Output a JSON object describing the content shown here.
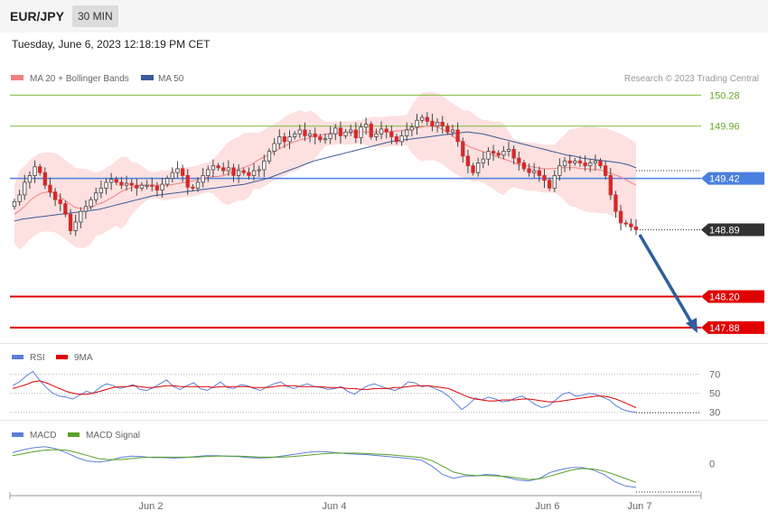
{
  "header": {
    "symbol": "EUR/JPY",
    "interval": "30 MIN",
    "datetime": "Tuesday, June 6, 2023 12:18:19 PM CET"
  },
  "legend": {
    "ma20_label": "MA 20 + Bollinger Bands",
    "ma50_label": "MA 50",
    "credit": "Research © 2023 Trading Central",
    "rsi_label": "RSI",
    "rsi_ma_label": "9MA",
    "macd_label": "MACD",
    "macd_signal_label": "MACD Signal"
  },
  "colors": {
    "ma20": "#f08080",
    "ma50": "#3a5a9a",
    "bollinger_fill": "#fde0e0",
    "candle": "#d42a2a",
    "support": "#e00000",
    "resistance": "#7dbb3a",
    "current_level": "#4a7fe0",
    "last_price_bg": "#333333",
    "arrow": "#2e5e9e",
    "rsi": "#5b7fd8",
    "rsi_ma": "#e00000",
    "macd": "#5b7fd8",
    "macd_signal": "#5aa02a"
  },
  "chart_data": [
    {
      "type": "candlestick",
      "title": "EUR/JPY",
      "ylim": [
        147.72,
        150.33
      ],
      "x_ticks": [
        "Jun 2",
        "Jun 4",
        "Jun 6",
        "Jun 7"
      ],
      "price_levels": [
        {
          "label": "150.28",
          "value": 150.28,
          "kind": "resistance"
        },
        {
          "label": "149.96",
          "value": 149.96,
          "kind": "resistance"
        },
        {
          "label": "149.42",
          "value": 149.42,
          "kind": "pivot"
        },
        {
          "label": "148.89",
          "value": 148.89,
          "kind": "last"
        },
        {
          "label": "148.20",
          "value": 148.2,
          "kind": "support"
        },
        {
          "label": "147.88",
          "value": 147.88,
          "kind": "support"
        }
      ],
      "close_prices": [
        149.18,
        149.25,
        149.38,
        149.45,
        149.54,
        149.48,
        149.35,
        149.28,
        149.2,
        149.16,
        149.05,
        148.88,
        148.97,
        149.08,
        149.13,
        149.2,
        149.27,
        149.32,
        149.38,
        149.41,
        149.38,
        149.35,
        149.37,
        149.35,
        149.32,
        149.35,
        149.35,
        149.34,
        149.3,
        149.36,
        149.42,
        149.48,
        149.52,
        149.45,
        149.33,
        149.32,
        149.38,
        149.45,
        149.51,
        149.55,
        149.53,
        149.5,
        149.53,
        149.45,
        149.5,
        149.48,
        149.45,
        149.5,
        149.51,
        149.6,
        149.7,
        149.78,
        149.85,
        149.8,
        149.85,
        149.88,
        149.92,
        149.86,
        149.88,
        149.85,
        149.82,
        149.83,
        149.88,
        149.94,
        149.86,
        149.9,
        149.92,
        149.84,
        149.95,
        149.98,
        149.85,
        149.88,
        149.93,
        149.9,
        149.85,
        149.8,
        149.86,
        149.92,
        149.95,
        150.02,
        150.05,
        150.01,
        149.96,
        150.0,
        149.96,
        149.9,
        149.92,
        149.8,
        149.65,
        149.55,
        149.48,
        149.58,
        149.62,
        149.7,
        149.68,
        149.66,
        149.7,
        149.72,
        149.63,
        149.58,
        149.52,
        149.48,
        149.5,
        149.45,
        149.4,
        149.32,
        149.45,
        149.55,
        149.6,
        149.58,
        149.6,
        149.58,
        149.55,
        149.58,
        149.6,
        149.55,
        149.45,
        149.25,
        149.08,
        148.96,
        148.95,
        148.92,
        148.89
      ],
      "ma20": [
        149.05,
        149.09,
        149.14,
        149.2,
        149.24,
        149.27,
        149.28,
        149.27,
        149.24,
        149.2,
        149.16,
        149.12,
        149.11,
        149.11,
        149.12,
        149.15,
        149.17,
        149.2,
        149.23,
        149.27,
        149.3,
        149.32,
        149.34,
        149.35,
        149.35,
        149.35,
        149.35,
        149.35,
        149.35,
        149.36,
        149.37,
        149.38,
        149.39,
        149.4,
        149.42,
        149.43,
        149.44,
        149.44,
        149.45,
        149.47,
        149.5,
        149.52,
        149.54,
        149.56,
        149.6,
        149.63,
        149.66,
        149.69,
        149.72,
        149.75,
        149.78,
        149.8,
        149.82,
        149.83,
        149.85,
        149.86,
        149.87,
        149.88,
        149.89,
        149.89,
        149.89,
        149.89,
        149.9,
        149.9,
        149.9,
        149.9,
        149.9,
        149.9,
        149.9,
        149.91,
        149.91,
        149.92,
        149.93,
        149.94,
        149.95,
        149.96,
        149.96,
        149.95,
        149.92,
        149.88,
        149.84,
        149.81,
        149.77,
        149.74,
        149.72,
        149.7,
        149.68,
        149.66,
        149.64,
        149.62,
        149.6,
        149.58,
        149.56,
        149.55,
        149.54,
        149.53,
        149.52,
        149.52,
        149.52,
        149.53,
        149.53,
        149.53,
        149.53,
        149.52,
        149.52,
        149.51,
        149.51,
        149.5,
        149.48,
        149.46,
        149.44,
        149.41,
        149.38,
        149.35
      ],
      "ma50": [
        148.98,
        149.0,
        149.01,
        149.02,
        149.03,
        149.04,
        149.05,
        149.06,
        149.07,
        149.08,
        149.09,
        149.1,
        149.12,
        149.14,
        149.16,
        149.18,
        149.2,
        149.22,
        149.24,
        149.25,
        149.26,
        149.27,
        149.28,
        149.29,
        149.3,
        149.31,
        149.32,
        149.33,
        149.34,
        149.35,
        149.36,
        149.38,
        149.4,
        149.42,
        149.45,
        149.48,
        149.51,
        149.54,
        149.57,
        149.6,
        149.62,
        149.64,
        149.66,
        149.68,
        149.7,
        149.72,
        149.74,
        149.76,
        149.78,
        149.8,
        149.81,
        149.82,
        149.83,
        149.84,
        149.85,
        149.86,
        149.87,
        149.88,
        149.89,
        149.9,
        149.89,
        149.88,
        149.86,
        149.84,
        149.82,
        149.8,
        149.78,
        149.76,
        149.74,
        149.72,
        149.7,
        149.68,
        149.66,
        149.65,
        149.63,
        149.62,
        149.61,
        149.6,
        149.59,
        149.58,
        149.56,
        149.53
      ]
    },
    {
      "type": "line",
      "title": "RSI",
      "ylim": [
        25,
        80
      ],
      "y_ticks": [
        70,
        50,
        30
      ],
      "series": [
        {
          "name": "RSI",
          "values": [
            58,
            62,
            68,
            73,
            64,
            56,
            50,
            47,
            46,
            44,
            48,
            52,
            50,
            56,
            60,
            58,
            55,
            57,
            59,
            54,
            53,
            56,
            60,
            64,
            57,
            54,
            58,
            61,
            55,
            53,
            57,
            62,
            56,
            55,
            59,
            58,
            55,
            53,
            57,
            60,
            62,
            57,
            55,
            58,
            60,
            57,
            56,
            54,
            55,
            57,
            52,
            49,
            54,
            58,
            60,
            57,
            55,
            53,
            56,
            62,
            61,
            57,
            58,
            55,
            52,
            47,
            40,
            33,
            38,
            45,
            43,
            46,
            44,
            41,
            42,
            45,
            47,
            43,
            38,
            35,
            37,
            43,
            49,
            51,
            47,
            48,
            50,
            49,
            46,
            43,
            37,
            33,
            31,
            30
          ]
        },
        {
          "name": "9MA",
          "values": [
            55,
            57,
            59,
            62,
            63,
            61,
            58,
            55,
            52,
            50,
            49,
            49,
            50,
            52,
            54,
            56,
            57,
            57,
            58,
            57,
            56,
            56,
            57,
            58,
            58,
            57,
            57,
            57,
            57,
            57,
            56,
            57,
            57,
            57,
            57,
            57,
            56,
            56,
            56,
            57,
            58,
            58,
            58,
            57,
            57,
            57,
            57,
            56,
            56,
            56,
            55,
            55,
            54,
            54,
            55,
            55,
            55,
            56,
            56,
            57,
            58,
            58,
            58,
            57,
            56,
            55,
            52,
            49,
            46,
            44,
            43,
            42,
            42,
            43,
            43,
            43,
            44,
            44,
            43,
            42,
            41,
            41,
            42,
            43,
            44,
            45,
            46,
            47,
            47,
            46,
            44,
            41,
            38,
            35
          ]
        }
      ]
    },
    {
      "type": "line",
      "title": "MACD",
      "ylim": [
        -0.7,
        0.5
      ],
      "y_ticks": [
        0
      ],
      "series": [
        {
          "name": "MACD",
          "values": [
            0.22,
            0.28,
            0.32,
            0.34,
            0.3,
            0.22,
            0.12,
            0.05,
            0.03,
            0.06,
            0.12,
            0.15,
            0.14,
            0.12,
            0.12,
            0.11,
            0.12,
            0.14,
            0.16,
            0.16,
            0.15,
            0.14,
            0.12,
            0.11,
            0.12,
            0.15,
            0.18,
            0.21,
            0.24,
            0.24,
            0.22,
            0.2,
            0.19,
            0.18,
            0.16,
            0.14,
            0.12,
            0.1,
            0.07,
            -0.05,
            -0.22,
            -0.3,
            -0.25,
            -0.25,
            -0.22,
            -0.23,
            -0.28,
            -0.33,
            -0.35,
            -0.3,
            -0.18,
            -0.12,
            -0.08,
            -0.08,
            -0.13,
            -0.22,
            -0.36,
            -0.45,
            -0.48
          ]
        },
        {
          "name": "MACD Signal",
          "values": [
            0.16,
            0.2,
            0.24,
            0.27,
            0.28,
            0.27,
            0.22,
            0.16,
            0.1,
            0.08,
            0.08,
            0.1,
            0.12,
            0.13,
            0.13,
            0.13,
            0.13,
            0.13,
            0.14,
            0.15,
            0.15,
            0.15,
            0.14,
            0.13,
            0.13,
            0.13,
            0.14,
            0.16,
            0.18,
            0.2,
            0.21,
            0.21,
            0.21,
            0.2,
            0.19,
            0.18,
            0.16,
            0.14,
            0.12,
            0.06,
            -0.05,
            -0.17,
            -0.22,
            -0.24,
            -0.24,
            -0.25,
            -0.26,
            -0.29,
            -0.32,
            -0.31,
            -0.25,
            -0.19,
            -0.13,
            -0.1,
            -0.11,
            -0.15,
            -0.22,
            -0.3,
            -0.38
          ]
        }
      ]
    }
  ]
}
